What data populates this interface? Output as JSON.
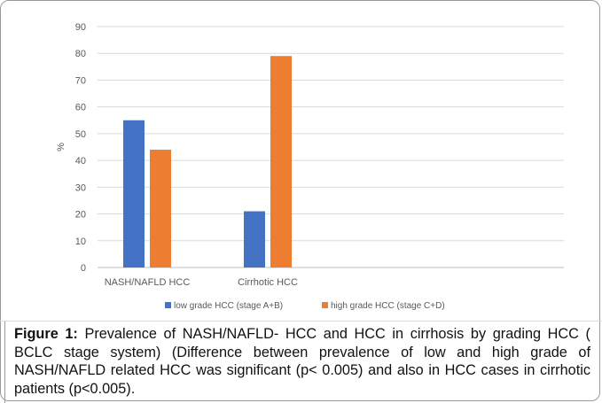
{
  "chart_data": {
    "type": "bar",
    "categories": [
      "NASH/NAFLD HCC",
      "Cirrhotic HCC"
    ],
    "series": [
      {
        "name": "low grade HCC (stage A+B)",
        "values": [
          55,
          21
        ],
        "color": "#4472C4"
      },
      {
        "name": "high grade HCC (stage C+D)",
        "values": [
          44,
          79
        ],
        "color": "#ED7D31"
      }
    ],
    "ylabel": "%",
    "ylim": [
      0,
      90
    ],
    "yticks": [
      0,
      10,
      20,
      30,
      40,
      50,
      60,
      70,
      80,
      90
    ],
    "grid": true,
    "legend": "bottom"
  },
  "caption": {
    "label": "Figure 1:",
    "text": " Prevalence of NASH/NAFLD- HCC and HCC in cirrhosis by grading HCC ( BCLC stage system) (Difference between prevalence of low and high grade of NASH/NAFLD related HCC was significant (p< 0.005) and also in HCC cases in cirrhotic patients (p<0.005)."
  }
}
